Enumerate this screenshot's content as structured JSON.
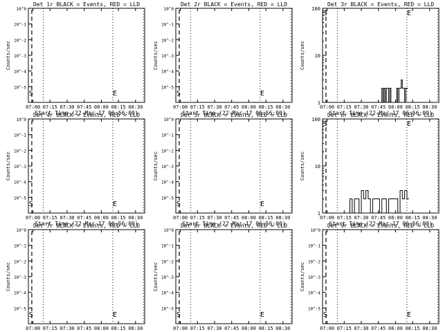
{
  "panels": [
    {
      "title": "Det 1r BLACK = Events, RED = LLD",
      "ylabel": "Counts/sec",
      "xlabel": "Start Time (22-Mar-17 06:56:00)",
      "scale": "small"
    },
    {
      "title": "Det 2r BLACK = Events, RED = LLD",
      "ylabel": "Counts/sec",
      "xlabel": "Start Time (22-Mar-17 06:56:00)",
      "scale": "small"
    },
    {
      "title": "Det 3r BLACK = Events, RED = LLD",
      "ylabel": "Counts/sec",
      "xlabel": "Start Time (22-Mar-17 06:56:00)",
      "scale": "large"
    },
    {
      "title": "Det 4r BLACK = Events, RED = LLD",
      "ylabel": "Counts/sec",
      "xlabel": "Start Time (22-Mar-17 06:56:00)",
      "scale": "small"
    },
    {
      "title": "Det 5r BLACK = Events, RED = LLD",
      "ylabel": "Counts/sec",
      "xlabel": "Start Time (22-Mar-17 06:56:00)",
      "scale": "small"
    },
    {
      "title": "Det 6r BLACK = Events, RED = LLD",
      "ylabel": "Counts/sec",
      "xlabel": "Start Time (22-Mar-17 06:56:00)",
      "scale": "large"
    },
    {
      "title": "Det 7r BLACK = Events, RED = LLD",
      "ylabel": "Counts/sec",
      "xlabel": "Start Time (22-Mar-17 06:56:00)",
      "scale": "small"
    },
    {
      "title": "Det 8r BLACK = Events, RED = LLD",
      "ylabel": "Counts/sec",
      "xlabel": "Start Time (22-Mar-17 06:56:00)",
      "scale": "small"
    },
    {
      "title": "Det 9r BLACK = Events, RED = LLD",
      "ylabel": "Counts/sec",
      "xlabel": "Start Time (22-Mar-17 06:56:00)",
      "scale": "small"
    }
  ],
  "xticks": [
    "07:00",
    "07:15",
    "07:30",
    "07:45",
    "08:00",
    "08:15",
    "08:30"
  ],
  "yticks_small": [
    "10^0",
    "10^-1",
    "10^-2",
    "10^-3",
    "10^-4",
    "10^-5"
  ],
  "yticks_large": [
    "1",
    "10",
    "100"
  ],
  "markers": {
    "start": "S",
    "end": "E"
  },
  "colors": {
    "events": "#000000",
    "lld": "#ff0000"
  },
  "chart_data": {
    "type": "line",
    "x_unit": "time (UT)",
    "xlim": [
      "06:56:00",
      "08:38:00"
    ],
    "xticks": [
      "07:00",
      "07:15",
      "07:30",
      "07:45",
      "08:00",
      "08:15",
      "08:30"
    ],
    "vertical_lines": {
      "dashed": "06:59",
      "dotted": [
        "07:09",
        "08:10",
        "08:37"
      ]
    },
    "ylim_small": [
      1e-06,
      1.0
    ],
    "ylim_large": [
      1,
      100
    ],
    "y_scale": "log",
    "series": [
      {
        "name": "Det 3r Events",
        "x": [
          "07:47",
          "07:48",
          "07:49",
          "07:50",
          "07:51",
          "07:52",
          "07:53",
          "07:54",
          "07:55",
          "07:56",
          "07:57",
          "07:58",
          "07:59",
          "08:00",
          "08:01",
          "08:02",
          "08:03",
          "08:04",
          "08:05",
          "08:06",
          "08:07",
          "08:08",
          "08:09"
        ],
        "y": [
          1,
          2,
          1,
          2,
          1,
          2,
          2,
          1,
          2,
          1,
          1,
          1,
          1,
          1,
          2,
          1,
          2,
          2,
          3,
          2,
          2,
          1,
          2
        ]
      },
      {
        "name": "Det 6r Events",
        "x": [
          "07:18",
          "07:20",
          "07:22",
          "07:24",
          "07:26",
          "07:28",
          "07:30",
          "07:32",
          "07:34",
          "07:36",
          "07:38",
          "07:40",
          "07:42",
          "07:44",
          "07:46",
          "07:48",
          "07:50",
          "07:52",
          "07:54",
          "07:56",
          "07:58",
          "08:00",
          "08:02",
          "08:04",
          "08:06",
          "08:08",
          "08:10"
        ],
        "y": [
          1,
          2,
          1,
          2,
          2,
          1,
          3,
          2,
          3,
          2,
          1,
          2,
          2,
          2,
          1,
          2,
          2,
          1,
          2,
          2,
          2,
          2,
          1,
          3,
          2,
          3,
          2
        ]
      }
    ]
  }
}
